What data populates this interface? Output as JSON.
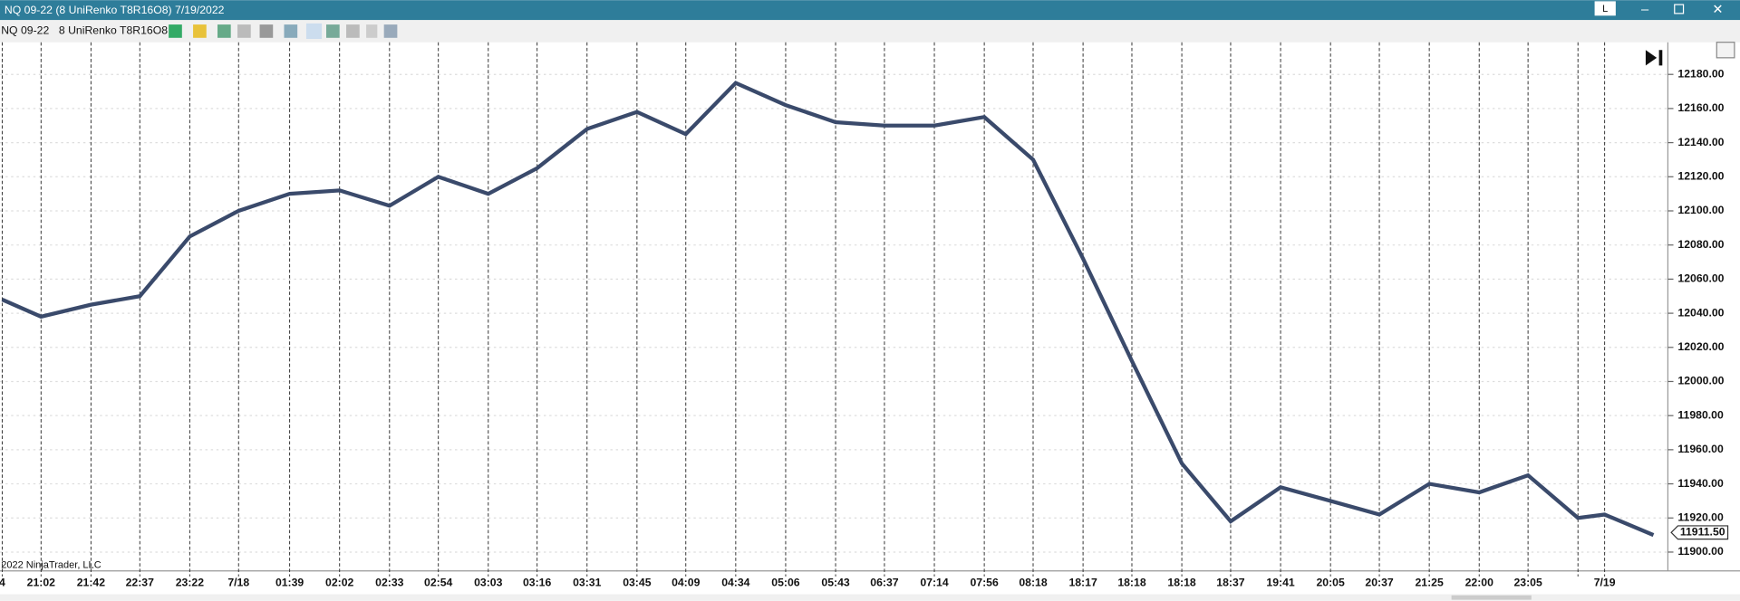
{
  "window": {
    "title": "NQ 09-22 (8 UniRenko T8R16O8)  7/19/2022",
    "button": "L"
  },
  "toolbar": {
    "instrument": "NQ 09-22",
    "bar_type": "8 UniRenko T8R16O8"
  },
  "copyright": "2022 NinjaTrader, LLC",
  "chart_data": {
    "type": "line",
    "categories": [
      "4",
      "21:02",
      "21:42",
      "22:37",
      "23:22",
      "7/18",
      "01:39",
      "02:02",
      "02:33",
      "02:54",
      "03:03",
      "03:16",
      "03:31",
      "03:45",
      "04:09",
      "04:34",
      "05:06",
      "05:43",
      "06:37",
      "07:14",
      "07:56",
      "08:18",
      "18:17",
      "18:18",
      "18:18",
      "18:37",
      "19:41",
      "20:05",
      "20:37",
      "21:25",
      "22:00",
      "23:05",
      null,
      "7/19",
      null
    ],
    "values": [
      12048,
      12038,
      12045,
      12050,
      12085,
      12100,
      12110,
      12112,
      12103,
      12120,
      12110,
      12125,
      12148,
      12158,
      12145,
      12175,
      12162,
      12152,
      12150,
      12150,
      12155,
      12130,
      12072,
      12012,
      11952,
      11918,
      11938,
      11930,
      11922,
      11940,
      11935,
      11945,
      11920,
      11922,
      11910
    ],
    "color": "#3a4a6b",
    "ylim": [
      11890,
      12190
    ],
    "yticks": [
      {
        "value": 11900,
        "label": "11900.00"
      },
      {
        "value": 11920,
        "label": "11920.00"
      },
      {
        "value": 11940,
        "label": "11940.00"
      },
      {
        "value": 11960,
        "label": "11960.00"
      },
      {
        "value": 11980,
        "label": "11980.00"
      },
      {
        "value": 12000,
        "label": "12000.00"
      },
      {
        "value": 12020,
        "label": "12020.00"
      },
      {
        "value": 12040,
        "label": "12040.00"
      },
      {
        "value": 12060,
        "label": "12060.00"
      },
      {
        "value": 12080,
        "label": "12080.00"
      },
      {
        "value": 12100,
        "label": "12100.00"
      },
      {
        "value": 12120,
        "label": "12120.00"
      },
      {
        "value": 12140,
        "label": "12140.00"
      },
      {
        "value": 12160,
        "label": "12160.00"
      },
      {
        "value": 12180,
        "label": "12180.00"
      }
    ],
    "grid": true,
    "last_price": {
      "value": 11911.5,
      "label": "11911.50"
    }
  }
}
